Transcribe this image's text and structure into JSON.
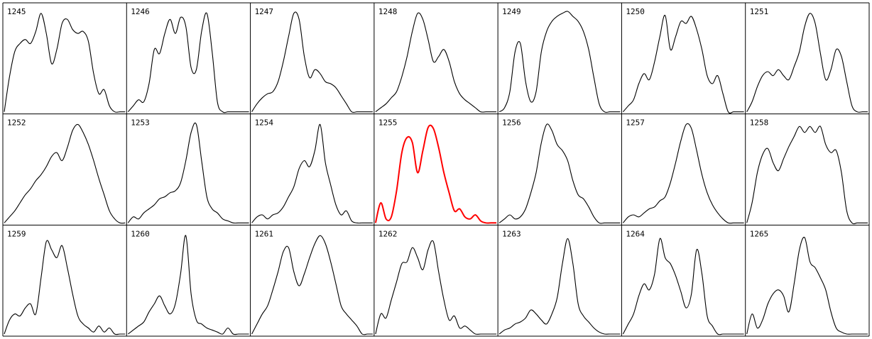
{
  "chart_data": {
    "type": "line",
    "layout": "small-multiples grid, 3 rows x 7 columns",
    "highlight_color": "#ff0000",
    "line_color": "#000000",
    "grid_color": "#000000",
    "highlighted_panel": "1255",
    "panels": [
      {
        "label": "1245",
        "y": [
          0,
          0.35,
          0.6,
          0.68,
          0.72,
          0.68,
          0.8,
          0.98,
          0.78,
          0.48,
          0.62,
          0.88,
          0.92,
          0.82,
          0.78,
          0.8,
          0.7,
          0.38,
          0.18,
          0.22,
          0.06,
          0,
          0,
          0
        ]
      },
      {
        "label": "1246",
        "y": [
          0,
          0.06,
          0.12,
          0.1,
          0.28,
          0.62,
          0.58,
          0.78,
          0.92,
          0.78,
          0.94,
          0.85,
          0.44,
          0.42,
          0.8,
          0.98,
          0.6,
          0.1,
          0,
          0,
          0,
          0,
          0,
          0
        ]
      },
      {
        "label": "1247",
        "y": [
          0,
          0.08,
          0.14,
          0.18,
          0.2,
          0.3,
          0.5,
          0.75,
          0.98,
          0.92,
          0.55,
          0.34,
          0.42,
          0.38,
          0.3,
          0.28,
          0.24,
          0.16,
          0.08,
          0,
          0,
          0,
          0,
          0
        ]
      },
      {
        "label": "1248",
        "y": [
          0,
          0.04,
          0.08,
          0.14,
          0.2,
          0.35,
          0.55,
          0.8,
          0.98,
          0.92,
          0.72,
          0.5,
          0.55,
          0.62,
          0.5,
          0.3,
          0.18,
          0.12,
          0.08,
          0.04,
          0,
          0,
          0,
          0
        ]
      },
      {
        "label": "1249",
        "y": [
          0,
          0.04,
          0.2,
          0.6,
          0.68,
          0.3,
          0.1,
          0.2,
          0.6,
          0.8,
          0.9,
          0.95,
          0.98,
          1,
          0.95,
          0.9,
          0.8,
          0.62,
          0.34,
          0.08,
          0,
          0,
          0,
          0
        ]
      },
      {
        "label": "1250",
        "y": [
          0,
          0.06,
          0.12,
          0.28,
          0.38,
          0.32,
          0.5,
          0.75,
          0.96,
          0.62,
          0.75,
          0.9,
          0.88,
          0.95,
          0.82,
          0.62,
          0.36,
          0.28,
          0.36,
          0.18,
          0,
          0,
          0,
          0
        ]
      },
      {
        "label": "1251",
        "y": [
          0,
          0.1,
          0.25,
          0.36,
          0.4,
          0.36,
          0.42,
          0.36,
          0.32,
          0.45,
          0.6,
          0.85,
          0.98,
          0.88,
          0.58,
          0.32,
          0.42,
          0.62,
          0.55,
          0.3,
          0.06,
          0,
          0,
          0
        ]
      },
      {
        "label": "1252",
        "y": [
          0,
          0.06,
          0.12,
          0.2,
          0.28,
          0.34,
          0.42,
          0.48,
          0.56,
          0.66,
          0.7,
          0.62,
          0.75,
          0.92,
          0.98,
          0.9,
          0.78,
          0.62,
          0.44,
          0.28,
          0.12,
          0.04,
          0,
          0
        ]
      },
      {
        "label": "1253",
        "y": [
          0,
          0.06,
          0.04,
          0.1,
          0.14,
          0.18,
          0.24,
          0.26,
          0.3,
          0.32,
          0.4,
          0.62,
          0.9,
          0.98,
          0.62,
          0.26,
          0.14,
          0.1,
          0.04,
          0.02,
          0,
          0,
          0,
          0
        ]
      },
      {
        "label": "1254",
        "y": [
          0,
          0.06,
          0.08,
          0.04,
          0.08,
          0.1,
          0.16,
          0.26,
          0.36,
          0.54,
          0.62,
          0.56,
          0.72,
          0.98,
          0.6,
          0.38,
          0.18,
          0.08,
          0.12,
          0.02,
          0,
          0,
          0,
          0
        ]
      },
      {
        "label": "1255",
        "y": [
          0,
          0.2,
          0.04,
          0.06,
          0.32,
          0.7,
          0.85,
          0.8,
          0.5,
          0.72,
          0.95,
          0.94,
          0.75,
          0.5,
          0.3,
          0.12,
          0.14,
          0.06,
          0.04,
          0.08,
          0.02,
          0,
          0,
          0
        ]
      },
      {
        "label": "1256",
        "y": [
          0,
          0.04,
          0.08,
          0.04,
          0.06,
          0.14,
          0.3,
          0.5,
          0.8,
          0.98,
          0.92,
          0.78,
          0.72,
          0.62,
          0.42,
          0.28,
          0.24,
          0.16,
          0.06,
          0,
          0,
          0,
          0,
          0
        ]
      },
      {
        "label": "1257",
        "y": [
          0,
          0.06,
          0.08,
          0.06,
          0.1,
          0.14,
          0.16,
          0.22,
          0.26,
          0.4,
          0.6,
          0.82,
          0.98,
          0.94,
          0.72,
          0.48,
          0.3,
          0.18,
          0.1,
          0.04,
          0,
          0,
          0,
          0
        ]
      },
      {
        "label": "1258",
        "y": [
          0,
          0.2,
          0.5,
          0.68,
          0.74,
          0.6,
          0.52,
          0.64,
          0.76,
          0.86,
          0.96,
          0.9,
          0.96,
          0.9,
          0.96,
          0.78,
          0.7,
          0.72,
          0.5,
          0.12,
          0,
          0,
          0,
          0
        ]
      },
      {
        "label": "1259",
        "y": [
          0,
          0.14,
          0.2,
          0.18,
          0.26,
          0.3,
          0.2,
          0.56,
          0.92,
          0.84,
          0.76,
          0.88,
          0.66,
          0.4,
          0.18,
          0.1,
          0.06,
          0.02,
          0.08,
          0.02,
          0.06,
          0,
          0,
          0
        ]
      },
      {
        "label": "1260",
        "y": [
          0,
          0.04,
          0.08,
          0.12,
          0.22,
          0.3,
          0.38,
          0.28,
          0.2,
          0.3,
          0.6,
          0.98,
          0.4,
          0.14,
          0.1,
          0.06,
          0.04,
          0.02,
          0,
          0.06,
          0,
          0,
          0,
          0
        ]
      },
      {
        "label": "1261",
        "y": [
          0,
          0.1,
          0.2,
          0.28,
          0.44,
          0.62,
          0.82,
          0.86,
          0.62,
          0.48,
          0.6,
          0.76,
          0.9,
          0.98,
          0.9,
          0.72,
          0.5,
          0.28,
          0.2,
          0.14,
          0.08,
          0,
          0,
          0
        ]
      },
      {
        "label": "1262",
        "y": [
          0,
          0.2,
          0.16,
          0.34,
          0.52,
          0.7,
          0.72,
          0.86,
          0.76,
          0.64,
          0.84,
          0.92,
          0.62,
          0.34,
          0.14,
          0.18,
          0.06,
          0.08,
          0.04,
          0,
          0,
          0,
          0,
          0
        ]
      },
      {
        "label": "1263",
        "y": [
          0,
          0.04,
          0.06,
          0.1,
          0.12,
          0.16,
          0.24,
          0.2,
          0.14,
          0.1,
          0.2,
          0.36,
          0.7,
          0.95,
          0.7,
          0.3,
          0.18,
          0.12,
          0.06,
          0.02,
          0,
          0,
          0,
          0
        ]
      },
      {
        "label": "1264",
        "y": [
          0,
          0.1,
          0.2,
          0.38,
          0.5,
          0.44,
          0.6,
          0.95,
          0.76,
          0.7,
          0.58,
          0.42,
          0.26,
          0.4,
          0.84,
          0.6,
          0.18,
          0.08,
          0,
          0,
          0,
          0,
          0,
          0
        ]
      },
      {
        "label": "1265",
        "y": [
          0,
          0.2,
          0.06,
          0.14,
          0.3,
          0.4,
          0.44,
          0.38,
          0.22,
          0.5,
          0.84,
          0.96,
          0.72,
          0.66,
          0.56,
          0.44,
          0.22,
          0.06,
          0.02,
          0,
          0,
          0,
          0,
          0
        ]
      }
    ]
  }
}
